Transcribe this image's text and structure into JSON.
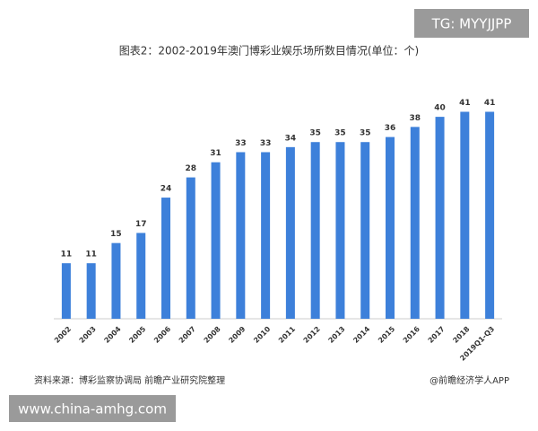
{
  "chart_data": {
    "type": "bar",
    "title": "图表2：2002-2019年澳门博彩业娱乐场所数目情况(单位：个)",
    "categories": [
      "2002",
      "2003",
      "2004",
      "2005",
      "2006",
      "2007",
      "2008",
      "2009",
      "2010",
      "2011",
      "2012",
      "2013",
      "2014",
      "2015",
      "2016",
      "2017",
      "2018",
      "2019Q1-Q3"
    ],
    "values": [
      11,
      11,
      15,
      17,
      24,
      28,
      31,
      33,
      33,
      34,
      35,
      35,
      35,
      36,
      38,
      40,
      41,
      41
    ],
    "color": "#3d80da",
    "ylim": [
      0,
      45
    ],
    "source": "资料来源：博彩监察协调局 前瞻产业研究院整理",
    "credit": "@前瞻经济学人APP"
  },
  "overlays": {
    "tag": "TG: MYYJJPP",
    "site": "www.china-amhg.com"
  }
}
